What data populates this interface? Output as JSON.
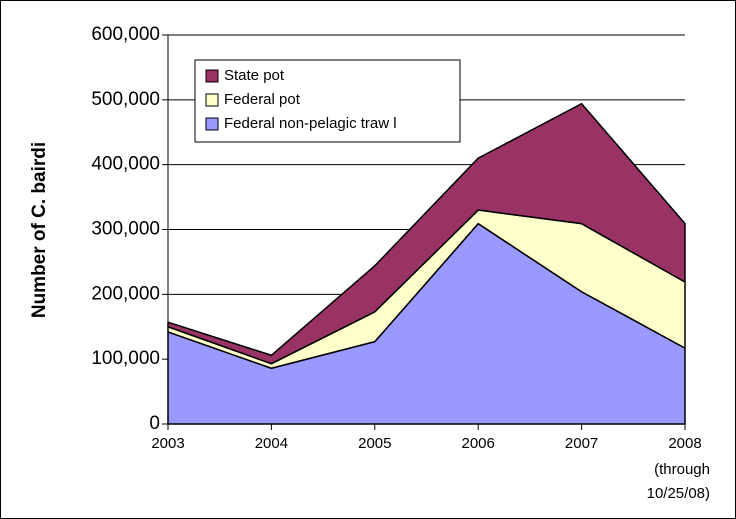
{
  "chart_data": {
    "type": "stacked_area",
    "y_label": "Number of C. bairdi",
    "categories": [
      "2003",
      "2004",
      "2005",
      "2006",
      "2007",
      "2008"
    ],
    "x_note": [
      "(through",
      "10/25/08)"
    ],
    "series": [
      {
        "name": "Federal non-pelagic traw l",
        "color": "#9999ff",
        "values": [
          142000,
          86000,
          127000,
          309000,
          204000,
          117000
        ]
      },
      {
        "name": "Federal pot",
        "color": "#ffffcc",
        "values": [
          8000,
          7000,
          46000,
          21000,
          105000,
          102000
        ]
      },
      {
        "name": "State pot",
        "color": "#993366",
        "values": [
          7000,
          13000,
          71000,
          80000,
          185000,
          90000
        ]
      }
    ],
    "ylim": [
      0,
      600000
    ],
    "yticks": [
      {
        "value": 0,
        "label": "0"
      },
      {
        "value": 100000,
        "label": "100,000"
      },
      {
        "value": 200000,
        "label": "200,000"
      },
      {
        "value": 300000,
        "label": "300,000"
      },
      {
        "value": 400000,
        "label": "400,000"
      },
      {
        "value": 500000,
        "label": "500,000"
      },
      {
        "value": 600000,
        "label": "600,000"
      }
    ],
    "grid": true
  }
}
